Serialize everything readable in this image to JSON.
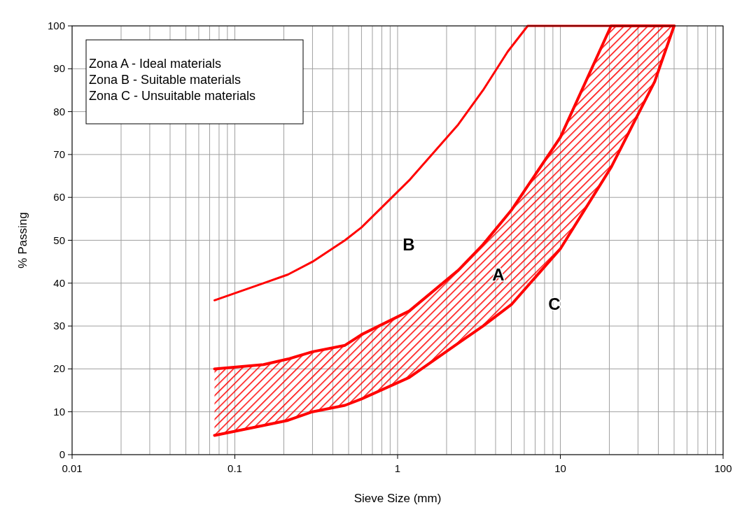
{
  "chart_data": {
    "type": "line",
    "xlabel": "Sieve Size (mm)",
    "ylabel": "% Passing",
    "log": "x",
    "grid": true,
    "xlim": [
      0.01,
      100
    ],
    "ylim": [
      0,
      100
    ],
    "xticks": [
      0.01,
      0.1,
      1,
      10,
      100
    ],
    "yticks": [
      0,
      10,
      20,
      30,
      40,
      50,
      60,
      70,
      80,
      90,
      100
    ],
    "series": [
      {
        "color": "#ff0000",
        "x": [
          0.075,
          0.15,
          0.212,
          0.3,
          0.475,
          0.6,
          1.18,
          2.36,
          3.35,
          4.75,
          6.3,
          50
        ],
        "values": [
          36,
          40,
          42,
          45,
          50,
          53,
          64,
          77,
          85,
          94,
          100,
          100
        ]
      },
      {
        "color": "#ff0000",
        "x": [
          0.075,
          0.15,
          0.212,
          0.3,
          0.475,
          0.6,
          1.18,
          2.36,
          3.35,
          5,
          10,
          20.5,
          38,
          50
        ],
        "values": [
          20,
          21,
          22.3,
          24,
          25.5,
          28,
          33.5,
          43,
          49,
          57,
          74,
          100,
          100,
          100
        ],
        "lower": [
          4.5,
          6.8,
          8,
          10,
          11.5,
          13,
          18,
          26,
          30,
          35,
          48,
          67,
          87,
          100
        ],
        "upper": [
          20,
          21,
          22.3,
          24,
          25.5,
          28,
          33.5,
          43,
          49,
          57,
          74,
          100,
          100,
          100
        ]
      },
      {
        "color": "#ff0000",
        "x": [
          0.075,
          0.15,
          0.212,
          0.3,
          0.475,
          0.6,
          1.18,
          2.36,
          3.35,
          5,
          10,
          20.5,
          38,
          50
        ],
        "values": [
          4.5,
          6.8,
          8,
          10,
          11.5,
          13,
          18,
          26,
          30,
          35,
          48,
          67,
          87,
          100
        ]
      }
    ],
    "annotations": [
      "Zona A - Ideal materials",
      "Zona B - Suitable materials",
      "Zona C - Unsuitable materials",
      "A",
      "B",
      "C"
    ]
  }
}
